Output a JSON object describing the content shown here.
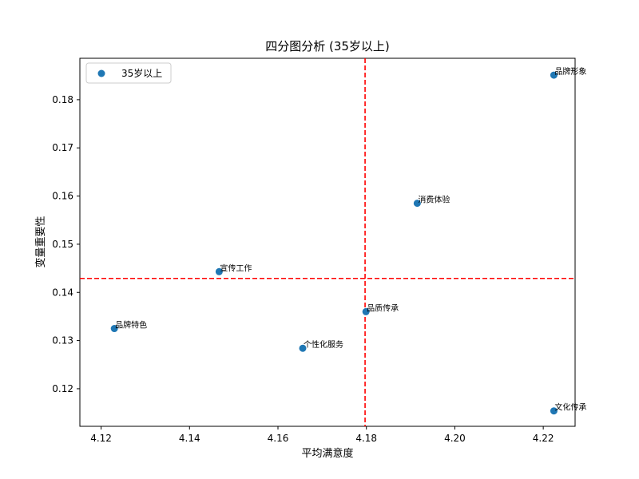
{
  "chart_data": {
    "type": "scatter",
    "title": "四分图分析 (35岁以上)",
    "xlabel": "平均满意度",
    "ylabel": "变量重要性",
    "xlim": [
      4.1152,
      4.2272
    ],
    "ylim": [
      0.1122,
      0.1886
    ],
    "xticks": [
      4.12,
      4.14,
      4.16,
      4.18,
      4.2,
      4.22
    ],
    "xtick_labels": [
      "4.12",
      "4.14",
      "4.16",
      "4.18",
      "4.20",
      "4.22"
    ],
    "yticks": [
      0.12,
      0.13,
      0.14,
      0.15,
      0.16,
      0.17,
      0.18
    ],
    "ytick_labels": [
      "0.12",
      "0.13",
      "0.14",
      "0.15",
      "0.16",
      "0.17",
      "0.18"
    ],
    "grid": false,
    "legend": {
      "placement": "top-left",
      "entries": [
        "35岁以上"
      ]
    },
    "series": [
      {
        "name": "35岁以上",
        "color": "#1f77b4",
        "points": [
          {
            "label": "品牌形象",
            "x": 4.2224,
            "y": 0.1851
          },
          {
            "label": "消费体验",
            "x": 4.1915,
            "y": 0.1585
          },
          {
            "label": "宣传工作",
            "x": 4.1467,
            "y": 0.1443
          },
          {
            "label": "品质传承",
            "x": 4.1799,
            "y": 0.136
          },
          {
            "label": "品牌特色",
            "x": 4.123,
            "y": 0.1325
          },
          {
            "label": "个性化服务",
            "x": 4.1656,
            "y": 0.1284
          },
          {
            "label": "文化传承",
            "x": 4.2224,
            "y": 0.1154
          }
        ]
      }
    ],
    "reference_lines": {
      "x": 4.1797,
      "y": 0.1429,
      "color": "#ff0000",
      "style": "dashed"
    }
  }
}
